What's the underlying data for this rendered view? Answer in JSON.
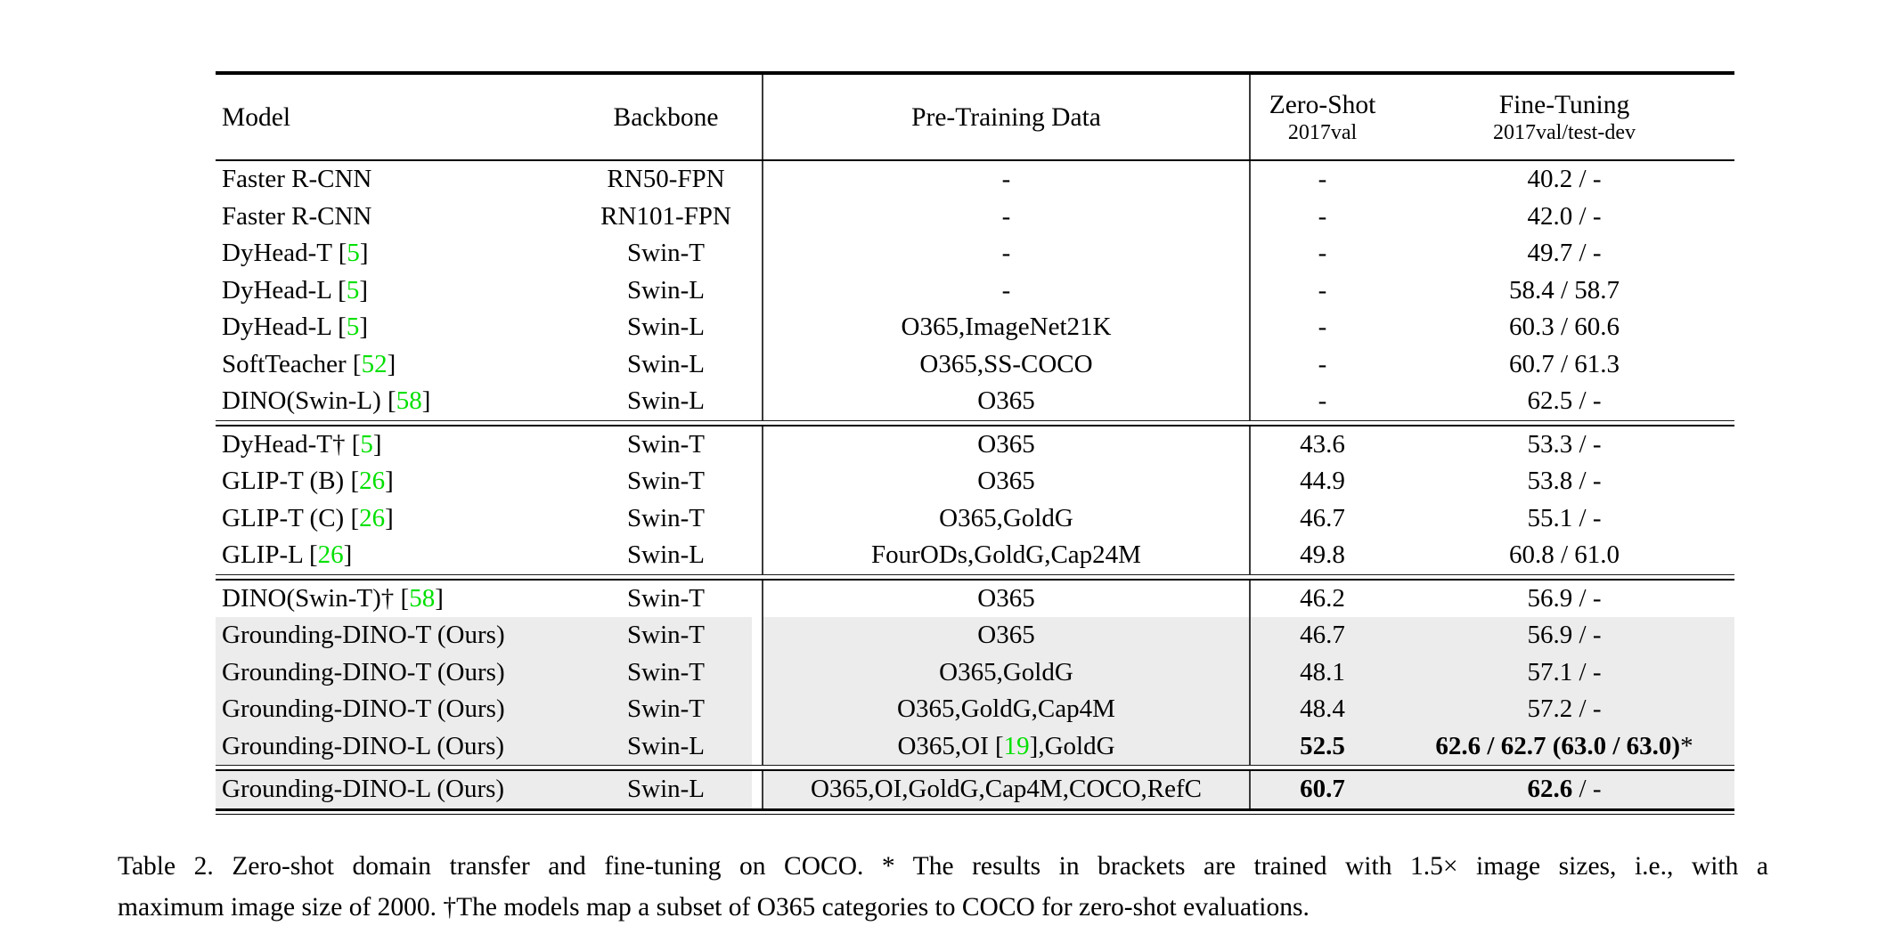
{
  "table": {
    "header": {
      "model": "Model",
      "backbone": "Backbone",
      "pretrain": "Pre-Training Data",
      "zeroshot_title": "Zero-Shot",
      "zeroshot_sub": "2017val",
      "finetune_title": "Fine-Tuning",
      "finetune_sub": "2017val/test-dev"
    },
    "colors": {
      "highlight_row": "#ececec",
      "citation_green": "#00e000",
      "rule_black": "#000000"
    },
    "sections": [
      {
        "rows": [
          {
            "model": "Faster R-CNN",
            "backbone": "RN50-FPN",
            "pretrain": "-",
            "zeroshot": "-",
            "finetune": "40.2 / -",
            "highlight": false
          },
          {
            "model": "Faster R-CNN",
            "backbone": "RN101-FPN",
            "pretrain": "-",
            "zeroshot": "-",
            "finetune": "42.0 / -",
            "highlight": false
          },
          {
            "model": "DyHead-T [«5»]",
            "backbone": "Swin-T",
            "pretrain": "-",
            "zeroshot": "-",
            "finetune": "49.7 / -",
            "highlight": false
          },
          {
            "model": "DyHead-L [«5»]",
            "backbone": "Swin-L",
            "pretrain": "-",
            "zeroshot": "-",
            "finetune": "58.4 / 58.7",
            "highlight": false
          },
          {
            "model": "DyHead-L [«5»]",
            "backbone": "Swin-L",
            "pretrain": "O365,ImageNet21K",
            "zeroshot": "-",
            "finetune": "60.3 / 60.6",
            "highlight": false
          },
          {
            "model": "SoftTeacher [«52»]",
            "backbone": "Swin-L",
            "pretrain": "O365,SS-COCO",
            "zeroshot": "-",
            "finetune": "60.7 / 61.3",
            "highlight": false
          },
          {
            "model": "DINO(Swin-L) [«58»]",
            "backbone": "Swin-L",
            "pretrain": "O365",
            "zeroshot": "-",
            "finetune": "62.5 / -",
            "highlight": false
          }
        ]
      },
      {
        "rows": [
          {
            "model": "DyHead-T† [«5»]",
            "backbone": "Swin-T",
            "pretrain": "O365",
            "zeroshot": "43.6",
            "finetune": "53.3 / -",
            "highlight": false
          },
          {
            "model": "GLIP-T (B) [«26»]",
            "backbone": "Swin-T",
            "pretrain": "O365",
            "zeroshot": "44.9",
            "finetune": "53.8 / -",
            "highlight": false
          },
          {
            "model": "GLIP-T (C) [«26»]",
            "backbone": "Swin-T",
            "pretrain": "O365,GoldG",
            "zeroshot": "46.7",
            "finetune": "55.1 / -",
            "highlight": false
          },
          {
            "model": "GLIP-L [«26»]",
            "backbone": "Swin-L",
            "pretrain": "FourODs,GoldG,Cap24M",
            "zeroshot": "49.8",
            "finetune": "60.8 / 61.0",
            "highlight": false
          }
        ]
      },
      {
        "rows": [
          {
            "model": "DINO(Swin-T)† [«58»]",
            "backbone": "Swin-T",
            "pretrain": "O365",
            "zeroshot": "46.2",
            "finetune": "56.9 / -",
            "highlight": false
          },
          {
            "model": "Grounding-DINO-T (Ours)",
            "backbone": "Swin-T",
            "pretrain": "O365",
            "zeroshot": "46.7",
            "finetune": "56.9 / -",
            "highlight": true
          },
          {
            "model": "Grounding-DINO-T (Ours)",
            "backbone": "Swin-T",
            "pretrain": "O365,GoldG",
            "zeroshot": "48.1",
            "finetune": "57.1 / -",
            "highlight": true
          },
          {
            "model": "Grounding-DINO-T (Ours)",
            "backbone": "Swin-T",
            "pretrain": "O365,GoldG,Cap4M",
            "zeroshot": "48.4",
            "finetune": "57.2 / -",
            "highlight": true
          },
          {
            "model": "Grounding-DINO-L (Ours)",
            "backbone": "Swin-L",
            "pretrain": "O365,OI [«19»],GoldG",
            "zeroshot": "⟦52.5⟧",
            "finetune": "⟦62.6 / 62.7 (63.0 / 63.0)⟧*",
            "highlight": true
          }
        ]
      },
      {
        "rows": [
          {
            "model": "Grounding-DINO-L (Ours)",
            "backbone": "Swin-L",
            "pretrain": "O365,OI,GoldG,Cap4M,COCO,RefC",
            "zeroshot": "⟦60.7⟧",
            "finetune": "⟦62.6⟧ / -",
            "highlight": true
          }
        ]
      }
    ]
  },
  "caption": {
    "line1": "Table 2.  Zero-shot domain transfer and fine-tuning on COCO. * The results in brackets are trained with 1.5× image sizes, i.e., with a",
    "line2": "maximum image size of 2000. †The models map a subset of O365 categories to COCO for zero-shot evaluations."
  }
}
